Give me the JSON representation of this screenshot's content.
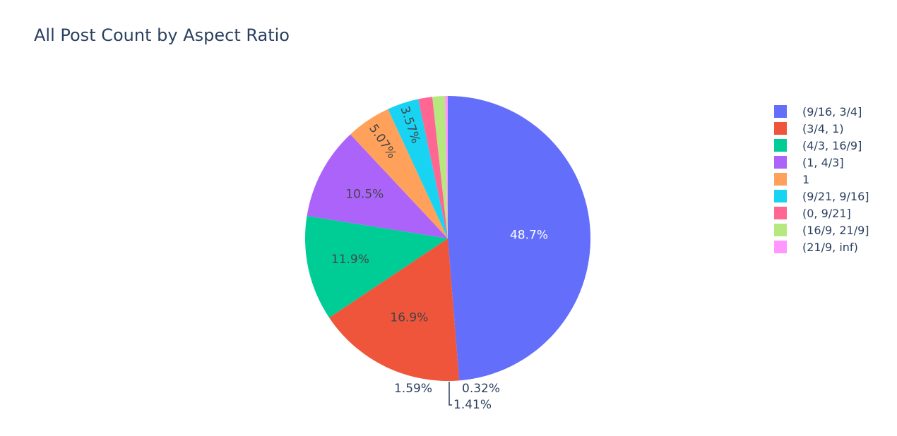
{
  "chart_data": {
    "type": "pie",
    "title": "All Post Count by Aspect Ratio",
    "direction": "clockwise",
    "legend_position": "right",
    "slices": [
      {
        "label": "(9/16, 3/4]",
        "value": 48.7,
        "text": "48.7%",
        "color": "#636efa"
      },
      {
        "label": "(3/4, 1)",
        "value": 16.9,
        "text": "16.9%",
        "color": "#ef553b"
      },
      {
        "label": "(4/3, 16/9]",
        "value": 11.9,
        "text": "11.9%",
        "color": "#00cc96"
      },
      {
        "label": "(1, 4/3]",
        "value": 10.5,
        "text": "10.5%",
        "color": "#ab63fa"
      },
      {
        "label": "1",
        "value": 5.07,
        "text": "5.07%",
        "color": "#ffa15a"
      },
      {
        "label": "(9/21, 9/16]",
        "value": 3.57,
        "text": "3.57%",
        "color": "#19d3f3"
      },
      {
        "label": "(0, 9/21]",
        "value": 1.59,
        "text": "1.59%",
        "color": "#ff6692"
      },
      {
        "label": "(16/9, 21/9]",
        "value": 1.41,
        "text": "1.41%",
        "color": "#b6e880"
      },
      {
        "label": "(21/9, inf)",
        "value": 0.32,
        "text": "0.32%",
        "color": "#ff97ff"
      }
    ]
  }
}
